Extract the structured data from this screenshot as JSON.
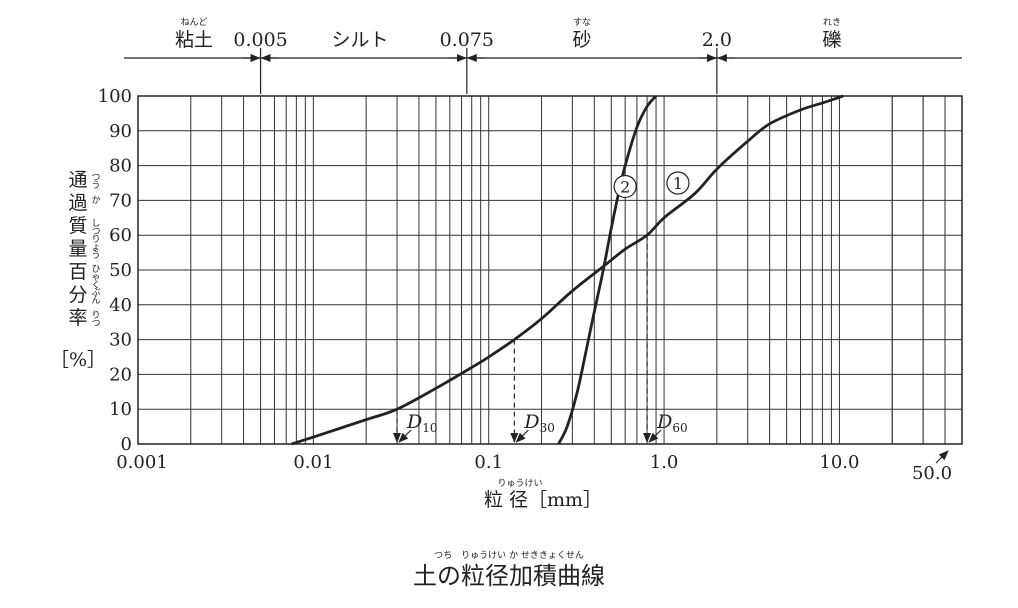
{
  "chart_data": {
    "type": "line",
    "caption": "土の粒径加積曲線",
    "caption_ruby": "つち　りゅうけい か せききょくせん",
    "xlabel": "粒 径［mm］",
    "xlabel_ruby": "りゅうけい",
    "ylabel": [
      "通",
      "過",
      "質",
      "量",
      "百",
      "分",
      "率"
    ],
    "ylabel_ruby": [
      "つう",
      "か",
      "しつりょう",
      "",
      "ひゃく",
      "ぶん",
      "りつ"
    ],
    "ylabel_unit": "［%］",
    "x_scale": "log",
    "xlim": [
      0.001,
      50
    ],
    "ylim": [
      0,
      100
    ],
    "x_tick_labels": [
      {
        "value": 0.001,
        "label": "0.001"
      },
      {
        "value": 0.01,
        "label": "0.01"
      },
      {
        "value": 0.1,
        "label": "0.1"
      },
      {
        "value": 1.0,
        "label": "1.0"
      },
      {
        "value": 10.0,
        "label": "10.0"
      },
      {
        "value": 50.0,
        "label": "50.0"
      }
    ],
    "y_ticks": [
      0,
      10,
      20,
      30,
      40,
      50,
      60,
      70,
      80,
      90,
      100
    ],
    "grid": true,
    "size_bands": {
      "boundaries": [
        {
          "value": 0.005,
          "label": "0.005"
        },
        {
          "value": 0.075,
          "label": "0.075"
        },
        {
          "value": 2.0,
          "label": "2.0"
        }
      ],
      "names": [
        {
          "label": "粘土",
          "ruby": "ねんど"
        },
        {
          "label": "シルト",
          "ruby": ""
        },
        {
          "label": "砂",
          "ruby": "すな"
        },
        {
          "label": "礫",
          "ruby": "れき"
        }
      ]
    },
    "series": [
      {
        "name": "①",
        "x": [
          0.0075,
          0.01,
          0.02,
          0.03,
          0.05,
          0.08,
          0.1,
          0.14,
          0.2,
          0.3,
          0.45,
          0.6,
          0.8,
          1.0,
          1.5,
          2.0,
          3.0,
          4.0,
          6.0,
          8.0,
          10.5
        ],
        "y": [
          0,
          2,
          7,
          10,
          16,
          22,
          25,
          30,
          36,
          44,
          51,
          56,
          60,
          65,
          72,
          79,
          87,
          92,
          96,
          98,
          100
        ]
      },
      {
        "name": "②",
        "x": [
          0.25,
          0.28,
          0.32,
          0.36,
          0.4,
          0.45,
          0.5,
          0.55,
          0.6,
          0.7,
          0.8,
          0.9
        ],
        "y": [
          0,
          5,
          15,
          27,
          38,
          50,
          62,
          72,
          80,
          91,
          97,
          100
        ]
      }
    ],
    "series_label_positions": [
      {
        "name": "①",
        "x": 1.2,
        "y": 75
      },
      {
        "name": "②",
        "x": 0.6,
        "y": 74
      }
    ],
    "annotations": [
      {
        "label": "D",
        "sub": "10",
        "x": 0.03
      },
      {
        "label": "D",
        "sub": "30",
        "x": 0.14
      },
      {
        "label": "D",
        "sub": "60",
        "x": 0.8
      }
    ]
  }
}
